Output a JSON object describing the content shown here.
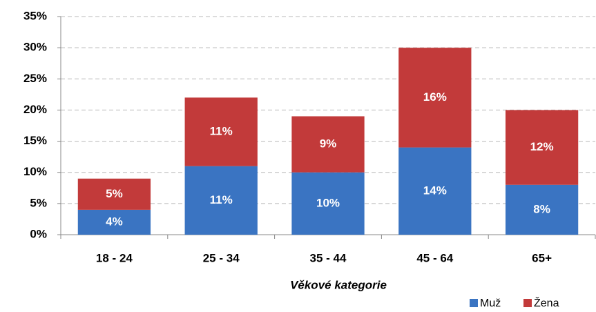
{
  "chart_data": {
    "type": "stacked_bar",
    "x_label": "Věkové kategorie",
    "categories": [
      "18 - 24",
      "25 - 34",
      "35 - 44",
      "45 - 64",
      "65+"
    ],
    "series": [
      {
        "name": "Muž",
        "color": "#3a74c2",
        "values": [
          4,
          11,
          10,
          14,
          8
        ],
        "value_labels": [
          "4%",
          "11%",
          "10%",
          "14%",
          "8%"
        ]
      },
      {
        "name": "Žena",
        "color": "#c23a3a",
        "values": [
          5,
          11,
          9,
          16,
          12
        ],
        "value_labels": [
          "5%",
          "11%",
          "9%",
          "16%",
          "12%"
        ]
      }
    ],
    "ylim": [
      0,
      35
    ],
    "yticks": [
      {
        "value": 0,
        "label": "0%"
      },
      {
        "value": 5,
        "label": "5%"
      },
      {
        "value": 10,
        "label": "10%"
      },
      {
        "value": 15,
        "label": "15%"
      },
      {
        "value": 20,
        "label": "20%"
      },
      {
        "value": 25,
        "label": "25%"
      },
      {
        "value": 30,
        "label": "30%"
      },
      {
        "value": 35,
        "label": "35%"
      }
    ],
    "grid": true,
    "legend": "bottom-right"
  }
}
